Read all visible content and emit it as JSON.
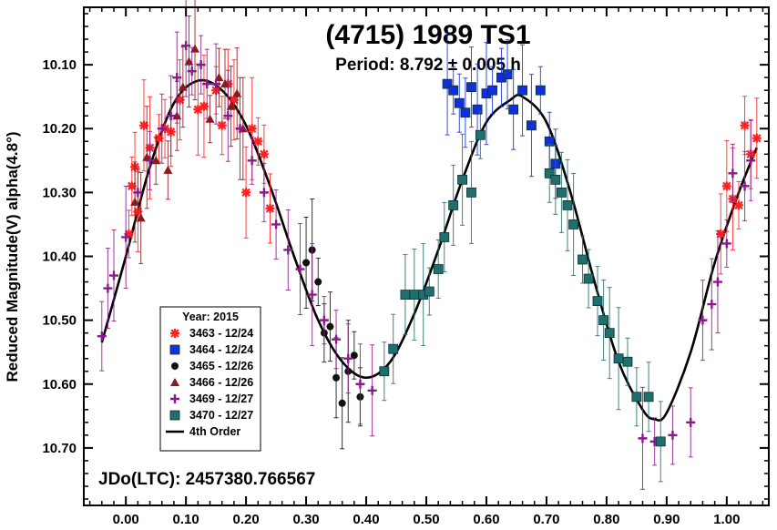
{
  "chart_data": {
    "type": "scatter",
    "title": "(4715) 1989 TS1",
    "subtitle": "Period: 8.792 ± 0.005 h",
    "xlabel": "",
    "ylabel": "Reduced Magnitude(V) alpha(4.8°)",
    "annotation": "JDo(LTC): 2457380.766567",
    "xlim": [
      -0.07,
      1.07
    ],
    "ylim": [
      10.79,
      10.01
    ],
    "y_inverted": true,
    "xticks": [
      "0.00",
      "0.10",
      "0.20",
      "0.30",
      "0.40",
      "0.50",
      "0.60",
      "0.70",
      "0.80",
      "0.90",
      "1.00"
    ],
    "yticks": [
      "10.10",
      "10.20",
      "10.30",
      "10.40",
      "10.50",
      "10.60",
      "10.70"
    ],
    "legend": {
      "title": "Year: 2015",
      "position": "bottom-left",
      "entries": [
        "3463 - 12/24",
        "3464 - 12/24",
        "3465 - 12/26",
        "3466 - 12/26",
        "3469 - 12/27",
        "3470 - 12/27",
        "4th Order"
      ]
    },
    "fit": {
      "name": "4th Order",
      "color": "#000000",
      "x": [
        -0.04,
        0.0,
        0.04,
        0.08,
        0.12,
        0.16,
        0.2,
        0.24,
        0.28,
        0.32,
        0.36,
        0.4,
        0.44,
        0.48,
        0.52,
        0.56,
        0.6,
        0.64,
        0.66,
        0.7,
        0.74,
        0.78,
        0.82,
        0.86,
        0.88,
        0.9,
        0.94,
        0.98,
        1.02,
        1.05
      ],
      "y": [
        10.535,
        10.4,
        10.26,
        10.16,
        10.125,
        10.14,
        10.195,
        10.29,
        10.4,
        10.5,
        10.565,
        10.59,
        10.565,
        10.49,
        10.39,
        10.28,
        10.19,
        10.155,
        10.15,
        10.19,
        10.3,
        10.44,
        10.565,
        10.64,
        10.655,
        10.645,
        10.55,
        10.41,
        10.3,
        10.23
      ]
    },
    "series": [
      {
        "name": "3463 - 12/24",
        "marker": "star",
        "color": "#ff2020",
        "x": [
          0.005,
          0.01,
          0.015,
          0.02,
          0.03,
          0.04,
          0.055,
          0.065,
          0.075,
          0.09,
          0.12,
          0.13,
          0.15,
          0.16,
          0.17,
          0.18,
          0.2,
          0.21,
          0.22,
          0.23,
          0.24,
          0.99,
          1.0,
          1.01,
          1.02,
          1.03,
          1.04,
          1.05
        ],
        "y": [
          10.365,
          10.29,
          10.26,
          10.33,
          10.195,
          10.23,
          10.215,
          10.2,
          10.205,
          10.155,
          10.17,
          10.165,
          10.14,
          10.195,
          10.13,
          10.155,
          10.3,
          10.2,
          10.22,
          10.24,
          10.325,
          10.365,
          10.29,
          10.31,
          10.32,
          10.195,
          10.24,
          10.215
        ]
      },
      {
        "name": "3464 - 12/24",
        "marker": "square",
        "color": "#1030e0",
        "x": [
          0.535,
          0.545,
          0.555,
          0.565,
          0.575,
          0.585,
          0.6,
          0.61,
          0.625,
          0.635,
          0.645,
          0.66,
          0.675,
          0.69,
          0.705,
          0.715
        ],
        "y": [
          10.13,
          10.14,
          10.16,
          10.175,
          10.135,
          10.17,
          10.145,
          10.14,
          10.12,
          10.115,
          10.17,
          10.14,
          10.195,
          10.14,
          10.22,
          10.255
        ]
      },
      {
        "name": "3465 - 12/26",
        "marker": "circle",
        "color": "#111111",
        "x": [
          0.3,
          0.31,
          0.32,
          0.33,
          0.34,
          0.35,
          0.36,
          0.37,
          0.38,
          0.39
        ],
        "y": [
          10.41,
          10.39,
          10.44,
          10.52,
          10.51,
          10.59,
          10.63,
          10.58,
          10.555,
          10.62
        ]
      },
      {
        "name": "3466 - 12/26",
        "marker": "triangle",
        "color": "#8b1a1a",
        "x": [
          0.015,
          0.025,
          0.035,
          0.05,
          0.07,
          0.085,
          0.095,
          0.105,
          0.115,
          0.14,
          0.155,
          0.165,
          0.175,
          0.185,
          0.195
        ],
        "y": [
          10.315,
          10.34,
          10.245,
          10.25,
          10.265,
          10.18,
          10.135,
          10.095,
          10.075,
          10.185,
          10.12,
          10.13,
          10.165,
          10.145,
          10.2
        ]
      },
      {
        "name": "3469 - 12/27",
        "marker": "plus",
        "color": "#8a1a8a",
        "x": [
          -0.04,
          -0.03,
          -0.02,
          0.0,
          0.02,
          0.04,
          0.06,
          0.075,
          0.085,
          0.1,
          0.11,
          0.125,
          0.135,
          0.15,
          0.17,
          0.19,
          0.21,
          0.23,
          0.25,
          0.27,
          0.29,
          0.31,
          0.33,
          0.35,
          0.37,
          0.39,
          0.41,
          0.86,
          0.88,
          0.91,
          0.94,
          0.96,
          0.975,
          0.985,
          1.0,
          1.01,
          1.03,
          1.04
        ],
        "y": [
          10.525,
          10.45,
          10.43,
          10.37,
          10.3,
          10.25,
          10.2,
          10.18,
          10.12,
          10.07,
          10.11,
          10.1,
          10.13,
          10.13,
          10.18,
          10.2,
          10.25,
          10.3,
          10.35,
          10.39,
          10.42,
          10.46,
          10.5,
          10.53,
          10.56,
          10.6,
          10.61,
          10.685,
          10.69,
          10.68,
          10.66,
          10.5,
          10.475,
          10.44,
          10.38,
          10.27,
          10.29,
          10.25
        ]
      },
      {
        "name": "3470 - 12/27",
        "marker": "square",
        "color": "#1f6f6f",
        "x": [
          0.43,
          0.445,
          0.465,
          0.48,
          0.495,
          0.505,
          0.52,
          0.53,
          0.545,
          0.56,
          0.575,
          0.59,
          0.705,
          0.715,
          0.725,
          0.735,
          0.745,
          0.76,
          0.77,
          0.785,
          0.795,
          0.805,
          0.82,
          0.835,
          0.85,
          0.87,
          0.89
        ],
        "y": [
          10.58,
          10.545,
          10.46,
          10.46,
          10.46,
          10.455,
          10.42,
          10.37,
          10.32,
          10.28,
          10.3,
          10.21,
          10.27,
          10.28,
          10.3,
          10.32,
          10.35,
          10.405,
          10.435,
          10.47,
          10.5,
          10.52,
          10.56,
          10.565,
          10.62,
          10.62,
          10.69
        ]
      }
    ]
  }
}
